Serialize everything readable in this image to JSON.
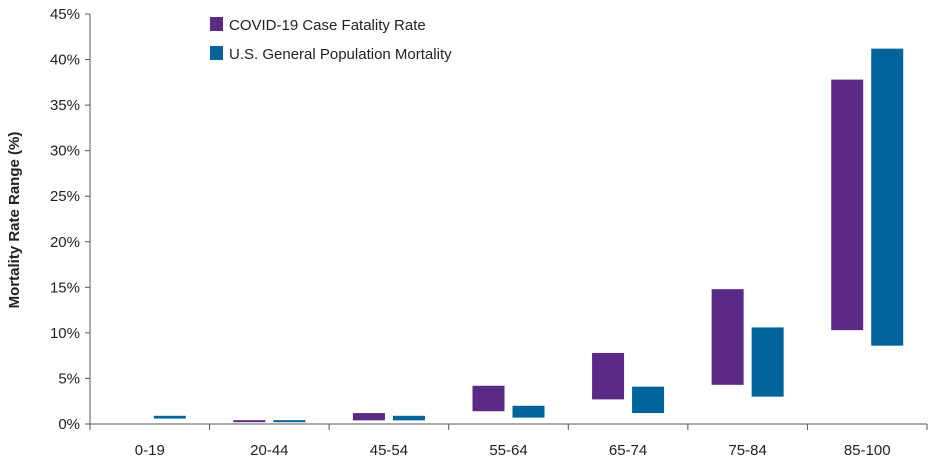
{
  "chart_data": {
    "type": "bar",
    "subtype": "floating-range",
    "title": "",
    "xlabel": "",
    "ylabel": "Mortality Rate Range (%)",
    "ylim": [
      0,
      45
    ],
    "yticks": [
      "0%",
      "5%",
      "10%",
      "15%",
      "20%",
      "25%",
      "30%",
      "35%",
      "40%",
      "45%"
    ],
    "ytick_values": [
      0,
      5,
      10,
      15,
      20,
      25,
      30,
      35,
      40,
      45
    ],
    "grid": false,
    "legend_position": "top-left",
    "categories": [
      "0-19",
      "20-44",
      "45-54",
      "55-64",
      "65-74",
      "75-84",
      "85-100"
    ],
    "series": [
      {
        "name": "COVID-19 Case Fatality Rate",
        "color": "#5b2a86",
        "ranges": [
          [
            0,
            0
          ],
          [
            0.2,
            0.4
          ],
          [
            0.4,
            1.2
          ],
          [
            1.4,
            4.2
          ],
          [
            2.7,
            7.8
          ],
          [
            4.3,
            14.8
          ],
          [
            10.3,
            37.8
          ]
        ]
      },
      {
        "name": "U.S. General Population Mortality",
        "color": "#00649a",
        "ranges": [
          [
            0.6,
            0.9
          ],
          [
            0.2,
            0.4
          ],
          [
            0.4,
            0.9
          ],
          [
            0.7,
            2.0
          ],
          [
            1.2,
            4.1
          ],
          [
            3.0,
            10.6
          ],
          [
            8.6,
            41.2
          ]
        ]
      }
    ]
  }
}
